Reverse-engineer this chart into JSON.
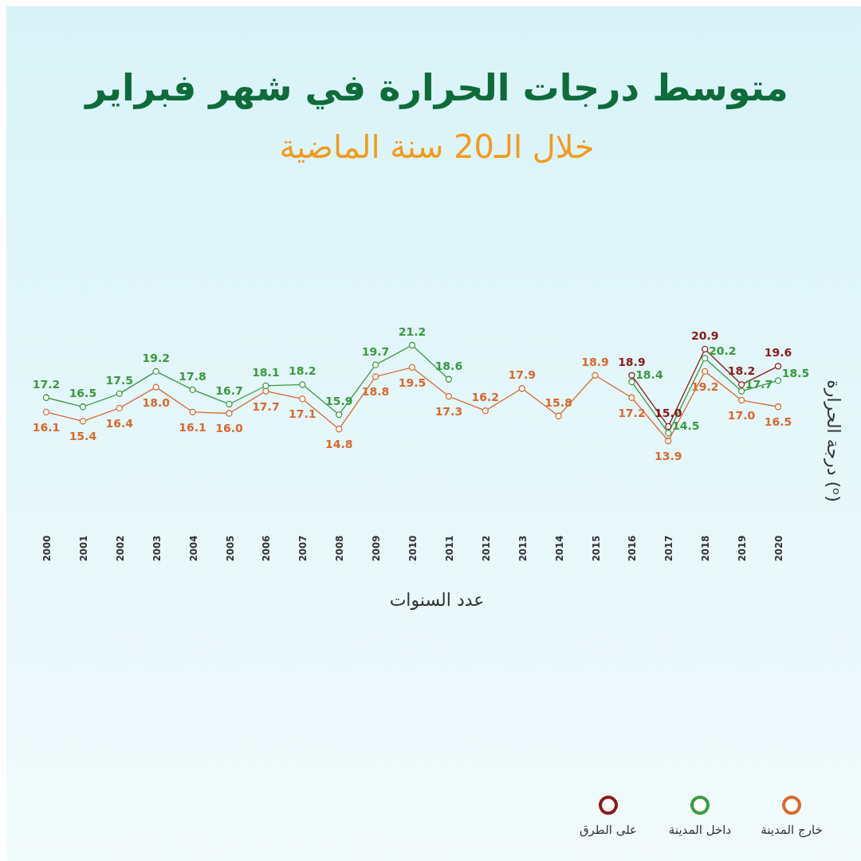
{
  "chart_data": {
    "type": "line",
    "title": "متوسط درجات الحرارة في شهر فبراير",
    "subtitle": "خلال الـ20 سنة الماضية",
    "xlabel": "عدد السنوات",
    "ylabel": "درجة الحرارة (ᵒ)",
    "categories": [
      "2000",
      "2001",
      "2002",
      "2003",
      "2004",
      "2005",
      "2006",
      "2007",
      "2008",
      "2009",
      "2010",
      "2011",
      "2012",
      "2013",
      "2014",
      "2015",
      "2016",
      "2017",
      "2018",
      "2019",
      "2020"
    ],
    "series": [
      {
        "name": "خارج المدينة",
        "color": "#d9692e",
        "values": [
          16.1,
          15.4,
          16.4,
          18.0,
          16.1,
          16.0,
          17.7,
          17.1,
          14.8,
          18.8,
          19.5,
          17.3,
          16.2,
          17.9,
          15.8,
          18.9,
          17.2,
          13.9,
          19.2,
          17.0,
          16.5
        ],
        "value_labels": [
          "16.1",
          "15.4",
          "16.4",
          "18.0",
          "16.1",
          "16.0",
          "17.7",
          "17.1",
          "14.8",
          "18.8",
          "19.5",
          "17.3",
          "16.2",
          "17.9",
          "15.8",
          "18.9",
          "17.2",
          "13.9",
          "19.2",
          "17.0",
          "16.5"
        ]
      },
      {
        "name": "داخل المدينة",
        "color": "#3a9a3f",
        "values": [
          17.2,
          16.5,
          17.5,
          19.2,
          17.8,
          16.7,
          18.1,
          18.2,
          15.9,
          19.7,
          21.2,
          18.6,
          null,
          null,
          null,
          null,
          18.4,
          14.5,
          20.2,
          17.7,
          18.5
        ],
        "value_labels": [
          "17.2",
          "16.5",
          "17.5",
          "19.2",
          "17.8",
          "16.7",
          "18.1",
          "18.2",
          "15.9",
          "19.7",
          "21.2",
          "18.6",
          null,
          null,
          null,
          null,
          "18.4",
          "14.5",
          "20.2",
          "17.7",
          "18.5"
        ]
      },
      {
        "name": "على الطرق",
        "color": "#8b1a1a",
        "values": [
          null,
          null,
          null,
          null,
          null,
          null,
          null,
          null,
          null,
          null,
          null,
          null,
          null,
          null,
          null,
          null,
          18.9,
          15.0,
          20.9,
          18.2,
          19.6
        ],
        "value_labels": [
          null,
          null,
          null,
          null,
          null,
          null,
          null,
          null,
          null,
          null,
          null,
          null,
          null,
          null,
          null,
          null,
          "18.9",
          "15.0",
          "20.9",
          "18.2",
          "19.6"
        ]
      }
    ],
    "marker": "circle",
    "legend": "bottom right",
    "tick_labels": "x"
  }
}
